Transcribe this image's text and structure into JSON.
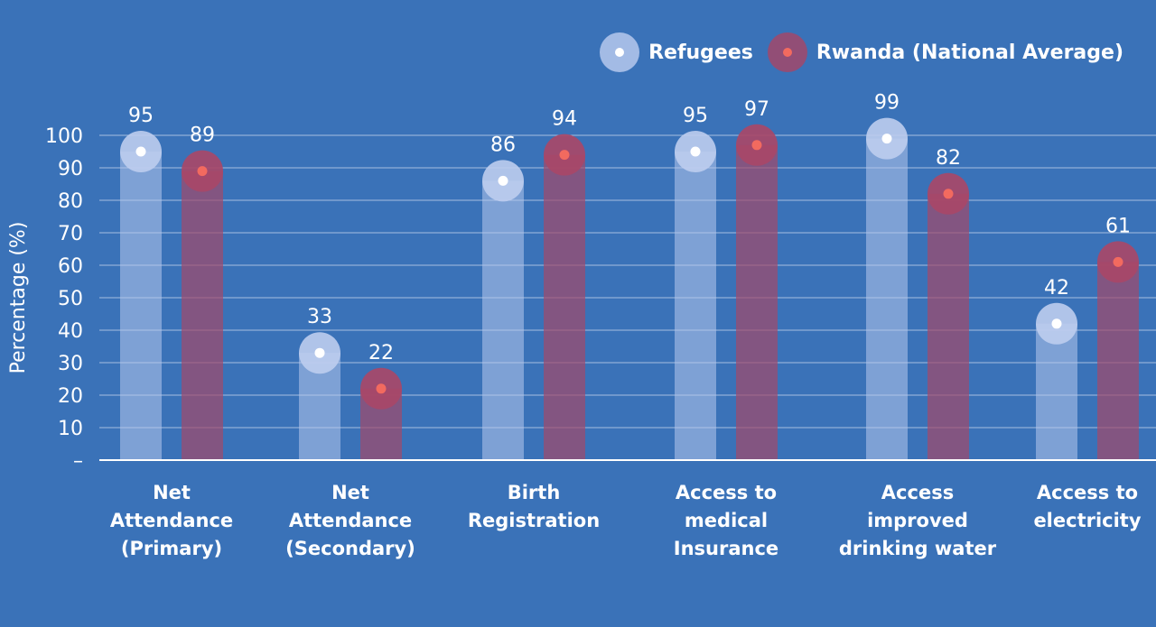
{
  "chart_data": {
    "type": "bar",
    "title": "",
    "xlabel": "",
    "ylabel": "Percentage (%)",
    "ylim": [
      0,
      100
    ],
    "yticks": [
      10,
      20,
      30,
      40,
      50,
      60,
      70,
      80,
      90,
      100
    ],
    "zero_tick_label": "–",
    "grid": true,
    "legend_position": "top-right",
    "categories": [
      [
        "Net",
        "Attendance",
        "(Primary)"
      ],
      [
        "Net",
        "Attendance",
        "(Secondary)"
      ],
      [
        "Birth",
        "Registration"
      ],
      [
        "Access to",
        "medical",
        "Insurance"
      ],
      [
        "Access",
        "improved",
        "drinking water"
      ],
      [
        "Access to",
        "electricity"
      ]
    ],
    "series": [
      {
        "name": "Refugees",
        "color": "#b6c8ec",
        "dot_color": "#ffffff",
        "values": [
          95,
          33,
          86,
          95,
          99,
          42
        ]
      },
      {
        "name": "Rwanda (National Average)",
        "color": "#a2486a",
        "dot_color": "#f26a5f",
        "values": [
          89,
          22,
          94,
          97,
          82,
          61
        ]
      }
    ]
  }
}
